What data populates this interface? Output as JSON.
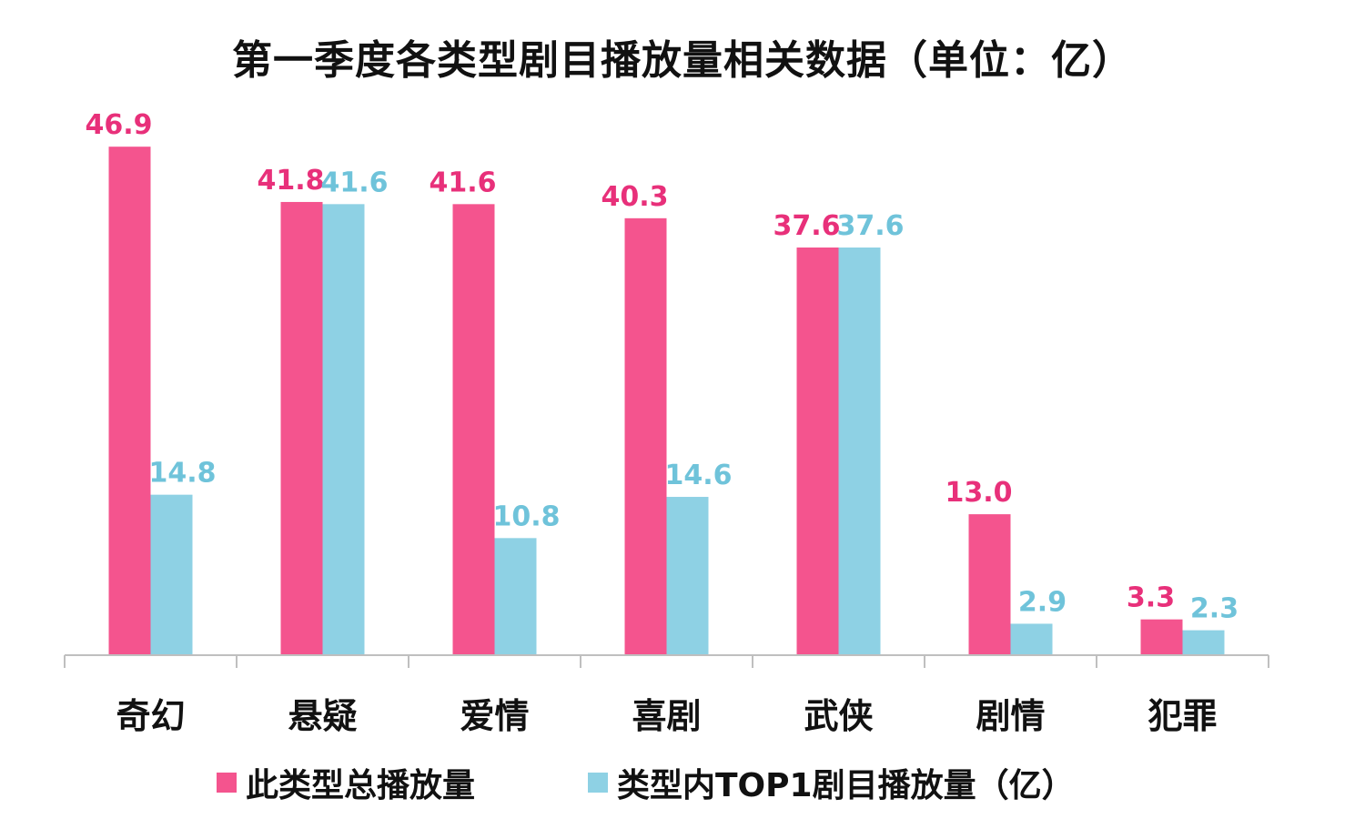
{
  "chart_data": {
    "type": "bar",
    "title": "第一季度各类型剧目播放量相关数据（单位：亿）",
    "categories": [
      "奇幻",
      "悬疑",
      "爱情",
      "喜剧",
      "武侠",
      "剧情",
      "犯罪"
    ],
    "series": [
      {
        "name": "此类型总播放量",
        "color": "#F4548E",
        "values": [
          46.9,
          41.8,
          41.6,
          40.3,
          37.6,
          13.0,
          3.3
        ],
        "labels": [
          "46.9",
          "41.8",
          "41.6",
          "40.3",
          "37.6",
          "13.0",
          "3.3"
        ]
      },
      {
        "name": "类型内TOP1剧目播放量（亿）",
        "color": "#8ED1E4",
        "values": [
          14.8,
          41.6,
          10.8,
          14.6,
          37.6,
          2.9,
          2.3
        ],
        "labels": [
          "14.8",
          "41.6",
          "10.8",
          "14.6",
          "37.6",
          "2.9",
          "2.3"
        ]
      }
    ],
    "label_colors": [
      "#E8307A",
      "#6FC3DA"
    ],
    "ylim": [
      0,
      47
    ],
    "grid": false,
    "legend_position": "bottom",
    "xlabel": "",
    "ylabel": ""
  }
}
